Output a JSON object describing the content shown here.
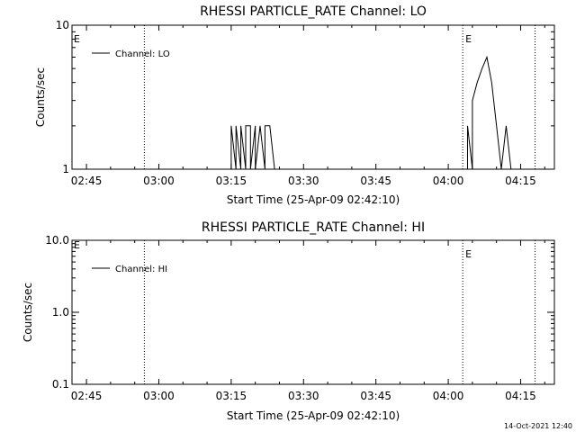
{
  "footer": {
    "timestamp": "14-Oct-2021 12:40"
  },
  "chart_data": [
    {
      "type": "line",
      "title": "RHESSI PARTICLE_RATE Channel: LO",
      "xlabel": "Start Time (25-Apr-09 02:42:10)",
      "ylabel": "Counts/sec",
      "y_scale": "log",
      "xlim": [
        "02:42",
        "04:22"
      ],
      "ylim": [
        1,
        10
      ],
      "x_ticks": [
        "02:45",
        "03:00",
        "03:15",
        "03:30",
        "03:45",
        "04:00",
        "04:15"
      ],
      "y_ticks": [
        "1",
        "10"
      ],
      "legend": {
        "position": "top-left",
        "entries": [
          "Channel: LO"
        ]
      },
      "grid": false,
      "vertical_lines": [
        {
          "x": "02:57",
          "style": "dotted",
          "label": ""
        },
        {
          "x": "04:03",
          "style": "dotted",
          "label": "E"
        },
        {
          "x": "04:18",
          "style": "dotted",
          "label": ""
        }
      ],
      "edge_label": "E",
      "series": [
        {
          "name": "Channel: LO",
          "x": [
            "03:15",
            "03:15",
            "03:16",
            "03:16",
            "03:17",
            "03:17",
            "03:18",
            "03:18",
            "03:19",
            "03:19",
            "03:20",
            "03:20",
            "03:21",
            "03:21",
            "03:22",
            "03:22",
            "03:23",
            "03:23",
            "03:24",
            "04:04",
            "04:04",
            "04:05",
            "04:05",
            "04:06",
            "04:07",
            "04:08",
            "04:09",
            "04:10",
            "04:11",
            "04:11",
            "04:12",
            "04:12",
            "04:13"
          ],
          "y": [
            1,
            2,
            1,
            2,
            1,
            2,
            1,
            2,
            2,
            1,
            2,
            1,
            2,
            2,
            1,
            2,
            2,
            2,
            1,
            1,
            2,
            1,
            3,
            4,
            5,
            6,
            4,
            2,
            1,
            1,
            2,
            2,
            1
          ]
        }
      ]
    },
    {
      "type": "line",
      "title": "RHESSI PARTICLE_RATE Channel: HI",
      "xlabel": "Start Time (25-Apr-09 02:42:10)",
      "ylabel": "Counts/sec",
      "y_scale": "log",
      "xlim": [
        "02:42",
        "04:22"
      ],
      "ylim": [
        0.1,
        10
      ],
      "x_ticks": [
        "02:45",
        "03:00",
        "03:15",
        "03:30",
        "03:45",
        "04:00",
        "04:15"
      ],
      "y_ticks": [
        "0.1",
        "1.0",
        "10.0"
      ],
      "legend": {
        "position": "top-left",
        "entries": [
          "Channel: HI"
        ]
      },
      "grid": false,
      "vertical_lines": [
        {
          "x": "02:57",
          "style": "dotted",
          "label": ""
        },
        {
          "x": "04:03",
          "style": "dotted",
          "label": "E"
        },
        {
          "x": "04:18",
          "style": "dotted",
          "label": ""
        }
      ],
      "edge_label": "E",
      "series": [
        {
          "name": "Channel: HI",
          "x": [],
          "y": []
        }
      ]
    }
  ]
}
